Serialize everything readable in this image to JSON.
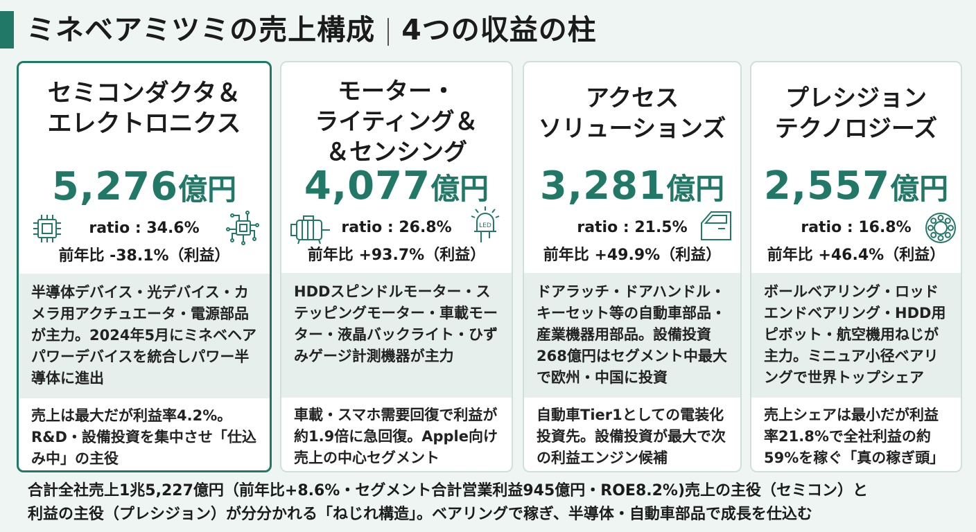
{
  "title": {
    "main": "ミネベアミツミの売上構成",
    "sub": "4つの収益の柱"
  },
  "colors": {
    "accent": "#217867",
    "card_border": "#cfe0db",
    "desc_bg": "#e6efec"
  },
  "segments": [
    {
      "name": "セミコンダクタ＆\nエレクトロニクス",
      "amount": "5,276",
      "unit": "億円",
      "ratio": "ratio : 34.6%",
      "yoy": "前年比 -38.1%（利益）",
      "description": "半導体デバイス・光デバイス・カメラ用アクチュエータ・電源部品が主力。2024年5月にミネベヘアパワーデバイスを統合しパワー半導体に進出",
      "note": "売上は最大だが利益率4.2%。R&D・設備投資を集中させ「仕込み中」の主役",
      "icons": [
        "chip-icon",
        "circuit-icon"
      ]
    },
    {
      "name": "モーター・\nライティング＆\n＆センシング",
      "amount": "4,077",
      "unit": "億円",
      "ratio": "ratio : 26.8%",
      "yoy": "前年比 +93.7%（利益）",
      "description": "HDDスピンドルモーター・ステッピングモーター・車載モーター・液晶バックライト・ひずみゲージ計測機器が主力",
      "note": "車載・スマホ需要回復で利益が約1.9倍に急回復。Apple向け売上の中心セグメント",
      "icons": [
        "motor-icon",
        "led-icon"
      ],
      "led_label": "LED"
    },
    {
      "name": "アクセス\nソリューションズ",
      "amount": "3,281",
      "unit": "億円",
      "ratio": "ratio : 21.5%",
      "yoy": "前年比 +49.9%（利益）",
      "description": "ドアラッチ・ドアハンドル・キーセット等の自動車部品・産業機器用部品。設備投資268億円はセグメント中最大で欧州・中国に投資",
      "note": "自動車Tier1としての電装化投資先。設備投資が最大で次の利益エンジン候補",
      "icons": [
        "car-door-icon"
      ]
    },
    {
      "name": "プレシジョン\nテクノロジーズ",
      "amount": "2,557",
      "unit": "億円",
      "ratio": "ratio : 16.8%",
      "yoy": "前年比 +46.4%（利益）",
      "description": "ボールベアリング・ロッドエンドベアリング・HDD用ピボット・航空機用ねじが主力。ミニュア小径ベアリングで世界トップシェア",
      "note": "売上シェアは最小だが利益率21.8%で全社利益の約59%を稼ぐ「真の稼ぎ頭」",
      "icons": [
        "bearing-icon"
      ]
    }
  ],
  "footer": {
    "line1": "合計全社売上1兆5,227億円（前年比+8.6%・セグメント合計営業利益945億円・ROE8.2%)売上の主役（セミコン）と",
    "line2": "利益の主役（プレシジョン）が分分かれる「ねじれ構造」。ベアリングで稼ぎ、半導体・自動車部品で成長を仕込む"
  }
}
